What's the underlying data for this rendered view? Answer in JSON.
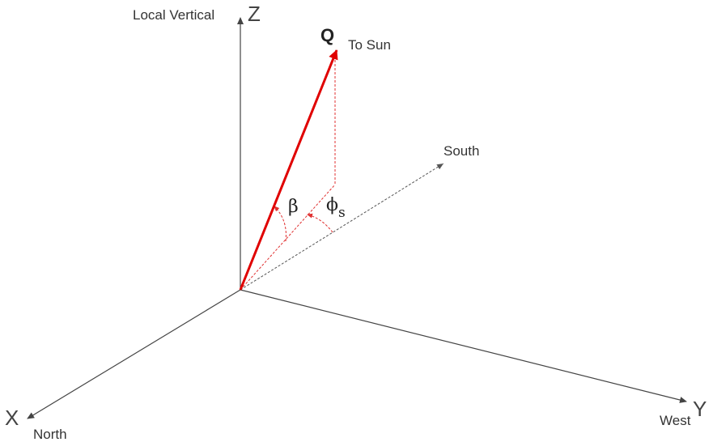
{
  "labels": {
    "z_axis": "Z",
    "x_axis": "X",
    "y_axis": "Y",
    "local_vertical": "Local Vertical",
    "north": "North",
    "west": "West",
    "south": "South",
    "q": "Q",
    "to_sun": "To Sun",
    "beta": "β",
    "phi": "ϕ",
    "phi_sub": "s"
  },
  "colors": {
    "axis": "#444444",
    "sun_vector": "#e00000",
    "projection": "#e03030",
    "south_line": "#555555"
  }
}
